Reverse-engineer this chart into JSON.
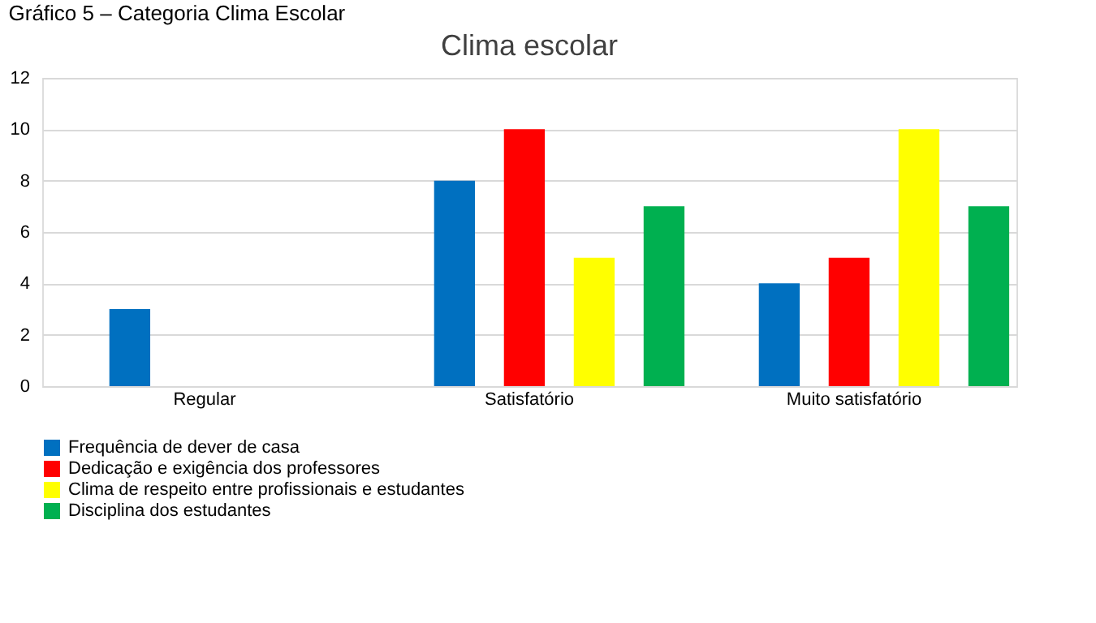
{
  "chart_data": {
    "type": "bar",
    "title": "Clima escolar",
    "annotations": [
      "Gráfico 5 – Categoria Clima Escolar"
    ],
    "categories": [
      "Regular",
      "Satisfatório",
      "Muito satisfatório"
    ],
    "series": [
      {
        "name": "Frequência de dever de casa",
        "color": "#0070c0",
        "values": [
          3,
          8,
          4
        ]
      },
      {
        "name": "Dedicação e exigência dos professores",
        "color": "#ff0000",
        "values": [
          0,
          10,
          5
        ]
      },
      {
        "name": "Clima de respeito entre profissionais e estudantes",
        "color": "#ffff00",
        "values": [
          0,
          5,
          10
        ]
      },
      {
        "name": "Disciplina dos estudantes",
        "color": "#00b050",
        "values": [
          0,
          7,
          7
        ]
      }
    ],
    "ylim": [
      0,
      12
    ],
    "yticks": [
      0,
      2,
      4,
      6,
      8,
      10,
      12
    ],
    "grid": "y",
    "legend": "bottom"
  }
}
